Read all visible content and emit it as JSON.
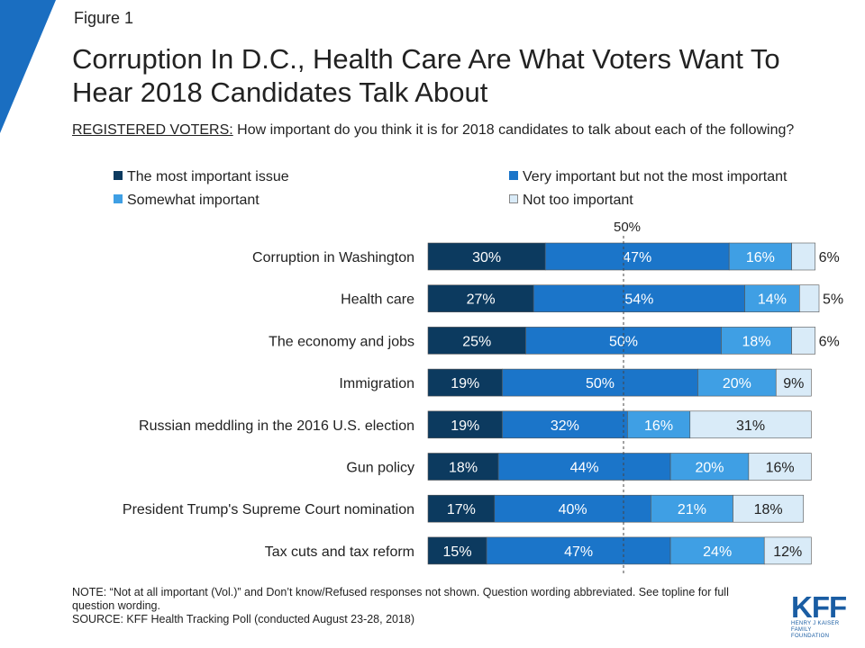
{
  "figure_label": "Figure 1",
  "title": "Corruption In D.C., Health Care Are What Voters Want To Hear 2018 Candidates Talk About",
  "subtitle": {
    "prefix": "REGISTERED VOTERS:",
    "text": " How important do you think it is for 2018 candidates to talk about each of the following?"
  },
  "colors": {
    "corner": "#1a6ec1",
    "most": "#0c3a5f",
    "very": "#1b75c9",
    "somewhat": "#3f9fe4",
    "not_too": "#d9ebf8",
    "bar_stroke": "#555555"
  },
  "chart_data": {
    "type": "bar",
    "orientation": "horizontal",
    "stacked": true,
    "categories": [
      "Corruption in Washington",
      "Health care",
      "The economy and jobs",
      "Immigration",
      "Russian meddling in the 2016 U.S. election",
      "Gun policy",
      "President Trump's Supreme Court nomination",
      "Tax cuts and tax reform"
    ],
    "series": [
      {
        "name": "The most important issue",
        "values": [
          30,
          27,
          25,
          19,
          19,
          18,
          17,
          15
        ],
        "labels": [
          "30%",
          "27%",
          "25%",
          "19%",
          "19%",
          "18%",
          "17%",
          "15%"
        ]
      },
      {
        "name": "Very important but not the most important",
        "values": [
          47,
          54,
          50,
          50,
          32,
          44,
          40,
          47
        ],
        "labels": [
          "47%",
          "54%",
          "50%",
          "50%",
          "32%",
          "44%",
          "40%",
          "47%"
        ]
      },
      {
        "name": "Somewhat important",
        "values": [
          16,
          14,
          18,
          20,
          16,
          20,
          21,
          24
        ],
        "labels": [
          "16%",
          "14%",
          "18%",
          "20%",
          "16%",
          "20%",
          "21%",
          "24%"
        ]
      },
      {
        "name": "Not too important",
        "values": [
          6,
          5,
          6,
          9,
          31,
          16,
          18,
          12
        ],
        "labels": [
          "6%",
          "5%",
          "6%",
          "9%",
          "31%",
          "16%",
          "18%",
          "12%"
        ]
      }
    ],
    "reference_line": {
      "value": 50,
      "label": "50%"
    },
    "xlim": [
      0,
      100
    ],
    "legend_position": "top",
    "grid": false
  },
  "notes": {
    "note": "NOTE: “Not at all important (Vol.)” and Don’t know/Refused responses not shown. Question wording abbreviated. See topline for full question wording.",
    "source": "SOURCE: KFF Health Tracking Poll (conducted August 23-28, 2018)"
  },
  "logo": {
    "text": "KFF",
    "line1": "HENRY J KAISER",
    "line2": "FAMILY FOUNDATION"
  }
}
